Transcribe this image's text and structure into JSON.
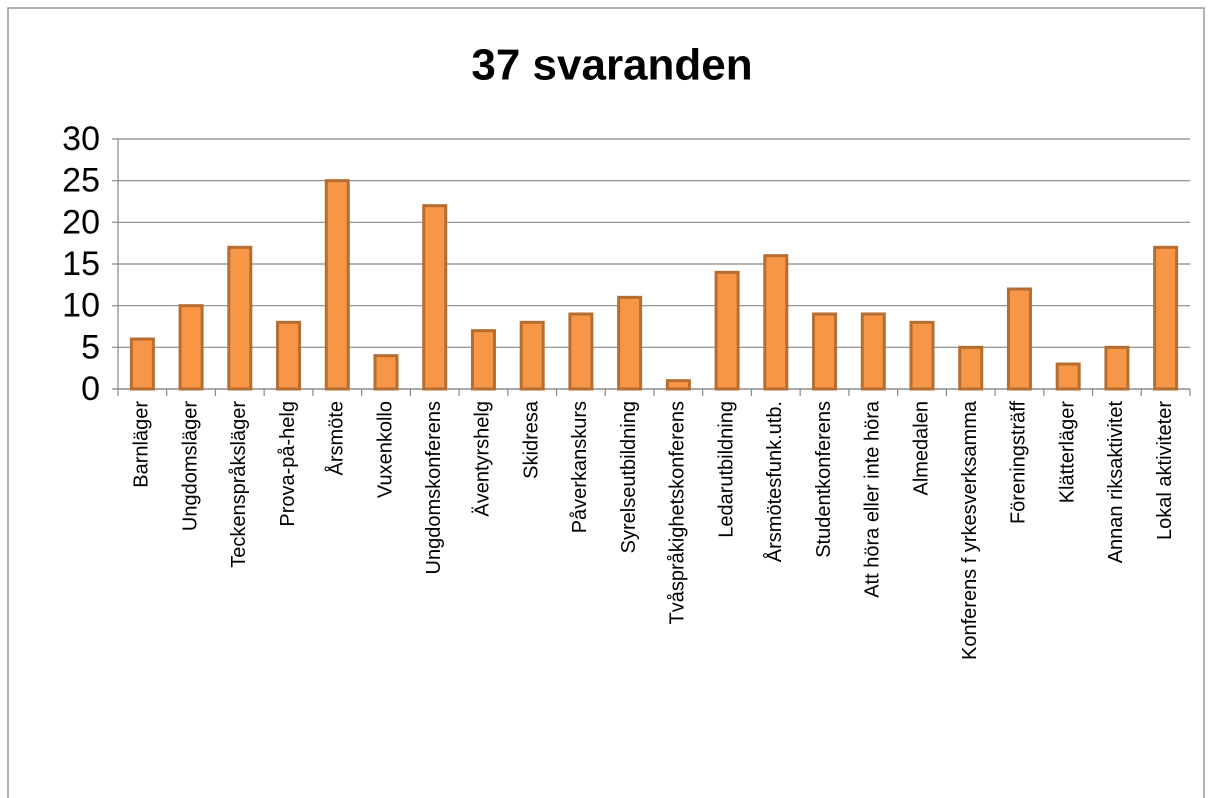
{
  "chart_data": {
    "type": "bar",
    "title": "37 svaranden",
    "categories": [
      "Barnläger",
      "Ungdomsläger",
      "Teckenspråksläger",
      "Prova-på-helg",
      "Årsmöte",
      "Vuxenkollo",
      "Ungdomskonferens",
      "Äventyrshelg",
      "Skidresa",
      "Påverkanskurs",
      "Syrelseutbildning",
      "Tvåspråkighetskonferens",
      "Ledarutbildning",
      "Årsmötesfunk.utb.",
      "Studentkonferens",
      "Att höra eller inte höra",
      "Almedalen",
      "Konferens f yrkesverksamma",
      "Föreningsträff",
      "Klätterläger",
      "Annan riksaktivitet",
      "Lokal aktiviteter"
    ],
    "values": [
      6,
      10,
      17,
      8,
      25,
      4,
      22,
      7,
      8,
      9,
      11,
      1,
      14,
      16,
      9,
      9,
      8,
      5,
      12,
      3,
      5,
      17
    ],
    "color": "#f79646",
    "ylim": [
      0,
      30
    ],
    "yticks": [
      0,
      5,
      10,
      15,
      20,
      25,
      30
    ],
    "grid": true
  }
}
